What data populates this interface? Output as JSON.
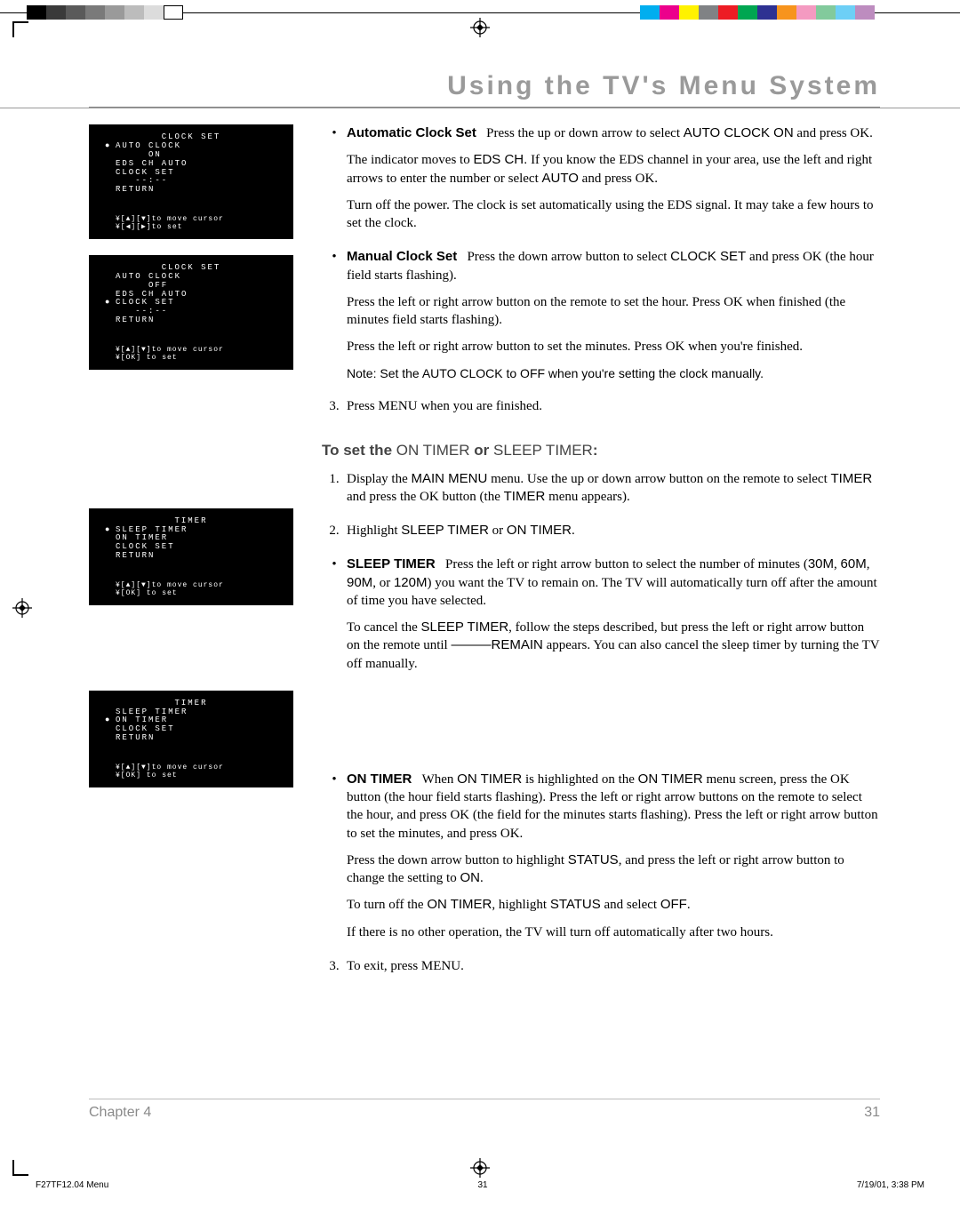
{
  "colors": {
    "header_text": "#9a9a9a",
    "osd_bg": "#000000",
    "osd_fg": "#ffffff",
    "rule": "#bbbbbb",
    "body_text": "#000000"
  },
  "top_swatches_left": [
    "#000000",
    "#3a3a3a",
    "#5a5a5a",
    "#7a7a7a",
    "#9a9a9a",
    "#bcbcbc",
    "#dcdcdc",
    "#ffffff"
  ],
  "top_swatches_right": [
    "#00aeef",
    "#ec008c",
    "#fff200",
    "#808285",
    "#ed1c24",
    "#00a651",
    "#2e3192",
    "#f7941d",
    "#f49ac1",
    "#82ca9c",
    "#6dcff6",
    "#bd8cbf"
  ],
  "header": {
    "title": "Using the TV's Menu System"
  },
  "osd1": {
    "title": "CLOCK SET",
    "lines": [
      "AUTO CLOCK",
      "     ON",
      "EDS CH AUTO",
      "",
      "CLOCK SET",
      "   --:--",
      "RETURN"
    ],
    "bullet_index": 0,
    "hint1": "¥[▲][▼]to move cursor",
    "hint2": "¥[◀][▶]to set"
  },
  "osd2": {
    "title": "CLOCK SET",
    "lines": [
      "AUTO CLOCK",
      "     OFF",
      "EDS CH AUTO",
      "",
      "CLOCK SET",
      "   --:--",
      "RETURN"
    ],
    "bullet_index": 4,
    "hint1": "¥[▲][▼]to move cursor",
    "hint2": "¥[OK] to set"
  },
  "osd3": {
    "title": "TIMER",
    "lines": [
      "SLEEP TIMER",
      "ON TIMER",
      "CLOCK SET",
      "RETURN"
    ],
    "bullet_index": 0,
    "hint1": "¥[▲][▼]to move cursor",
    "hint2": "¥[OK] to set"
  },
  "osd4": {
    "title": "TIMER",
    "lines": [
      "SLEEP TIMER",
      "ON TIMER",
      "CLOCK SET",
      "RETURN"
    ],
    "bullet_index": 1,
    "hint1": "¥[▲][▼]to move cursor",
    "hint2": "¥[OK] to set"
  },
  "main": {
    "auto_label": "Automatic Clock Set",
    "auto_p1a": "Press the up or down arrow to select ",
    "auto_p1b": "AUTO CLOCK ON",
    "auto_p1c": " and press OK.",
    "auto_p2a": "The indicator moves to ",
    "auto_p2b": "EDS CH.",
    "auto_p2c": " If you know the EDS channel in your area, use the left and right arrows to enter the number or select ",
    "auto_p2d": "AUTO",
    "auto_p2e": " and press OK.",
    "auto_p3": "Turn off the power. The clock is set automatically using the EDS signal. It may take a few hours to set the clock.",
    "manual_label": "Manual Clock Set",
    "manual_p1a": "Press the down arrow button to select ",
    "manual_p1b": "CLOCK SET",
    "manual_p1c": " and press OK (the hour field starts flashing).",
    "manual_p2": "Press the left or right arrow button on the remote to set the hour. Press OK when finished (the minutes field starts flashing).",
    "manual_p3": "Press the left or right arrow button to set the minutes. Press OK when you're finished.",
    "note": "Note: Set the AUTO CLOCK to OFF when you're setting the clock manually.",
    "step3": "Press MENU when you are finished.",
    "subhead_a": "To set the ",
    "subhead_b": "ON TIMER",
    "subhead_c": " or ",
    "subhead_d": "SLEEP TIMER",
    "subhead_e": ":",
    "t_step1a": "Display the ",
    "t_step1b": "MAIN MENU",
    "t_step1c": " menu. Use the up or down arrow button on the remote to select ",
    "t_step1d": "TIMER",
    "t_step1e": " and press the OK button (the ",
    "t_step1f": "TIMER",
    "t_step1g": " menu appears).",
    "t_step2a": "Highlight ",
    "t_step2b": "SLEEP TIMER",
    "t_step2c": " or ",
    "t_step2d": "ON TIMER",
    "t_step2e": ".",
    "sleep_label": "SLEEP TIMER",
    "sleep_p1a": "Press the left or right arrow button to select the number of minutes (",
    "sleep_p1b": "30M",
    "sleep_p1c": ", ",
    "sleep_p1d": "60M",
    "sleep_p1e": ", ",
    "sleep_p1f": "90M",
    "sleep_p1g": ", or ",
    "sleep_p1h": "120M",
    "sleep_p1i": ") you want the TV to remain on. The TV will automatically turn off after the amount of time you have selected.",
    "sleep_p2a": "To cancel the ",
    "sleep_p2b": "SLEEP TIMER",
    "sleep_p2c": ", follow the steps described, but press the left or right arrow button on the remote until ",
    "sleep_p2d": "———REMAIN",
    "sleep_p2e": " appears. You can also cancel the sleep timer by turning the TV off manually.",
    "on_label": "ON TIMER",
    "on_p1a": "When ",
    "on_p1b": "ON TIMER",
    "on_p1c": " is highlighted on the ",
    "on_p1d": "ON TIMER",
    "on_p1e": " menu screen, press the OK button (the hour field starts flashing). Press the left or right arrow buttons on the remote to select the hour, and press OK (the field for the minutes starts flashing). Press the left or right arrow button to set the minutes, and press OK.",
    "on_p2a": "Press the down arrow button to highlight ",
    "on_p2b": "STATUS",
    "on_p2c": ", and press the left or right arrow button to change the setting to ",
    "on_p2d": "ON",
    "on_p2e": ".",
    "on_p3a": "To turn off the ",
    "on_p3b": "ON TIMER",
    "on_p3c": ", highlight ",
    "on_p3d": "STATUS",
    "on_p3e": " and select ",
    "on_p3f": "OFF",
    "on_p3g": ".",
    "on_p4": "If there is no other operation, the TV will turn off automatically after two hours.",
    "t_step3": "To exit, press MENU."
  },
  "footer": {
    "chapter": "Chapter 4",
    "page": "31"
  },
  "meta": {
    "file": "F27TF12.04 Menu",
    "pg": "31",
    "date": "7/19/01, 3:38 PM"
  }
}
